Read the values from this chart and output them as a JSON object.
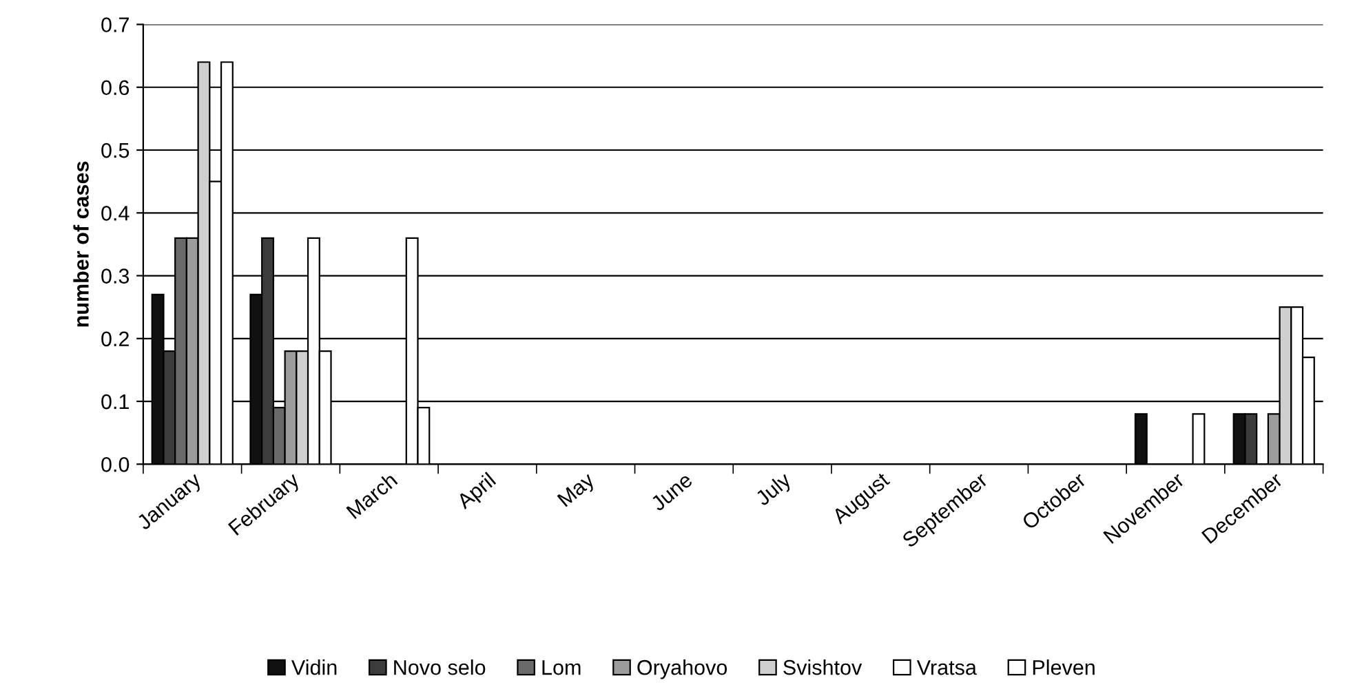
{
  "chart_data": {
    "type": "bar",
    "ylabel": "number of cases",
    "categories": [
      "January",
      "February",
      "March",
      "April",
      "May",
      "June",
      "July",
      "August",
      "September",
      "October",
      "November",
      "December"
    ],
    "series": [
      {
        "name": "Vidin",
        "color": "#111111",
        "values": [
          0.27,
          0.27,
          0,
          0,
          0,
          0,
          0,
          0,
          0,
          0,
          0.08,
          0.08
        ]
      },
      {
        "name": "Novo selo",
        "color": "#3c3c3c",
        "values": [
          0.18,
          0.36,
          0,
          0,
          0,
          0,
          0,
          0,
          0,
          0,
          0,
          0.08
        ]
      },
      {
        "name": "Lom",
        "color": "#6a6a6a",
        "values": [
          0.36,
          0.09,
          0,
          0,
          0,
          0,
          0,
          0,
          0,
          0,
          0,
          0
        ]
      },
      {
        "name": "Oryahovo",
        "color": "#9c9c9c",
        "values": [
          0.36,
          0.18,
          0,
          0,
          0,
          0,
          0,
          0,
          0,
          0,
          0,
          0.08
        ]
      },
      {
        "name": "Svishtov",
        "color": "#cfcfcf",
        "values": [
          0.64,
          0.18,
          0,
          0,
          0,
          0,
          0,
          0,
          0,
          0,
          0,
          0.25
        ]
      },
      {
        "name": "Vratsa",
        "color": "#ffffff",
        "values": [
          0.45,
          0.36,
          0.36,
          0,
          0,
          0,
          0,
          0,
          0,
          0,
          0.08,
          0.25
        ]
      },
      {
        "name": "Pleven",
        "color": "#ffffff",
        "values": [
          0.64,
          0.18,
          0.09,
          0,
          0,
          0,
          0,
          0,
          0,
          0,
          0,
          0.17
        ]
      }
    ],
    "ylim": [
      0,
      0.7
    ],
    "yticks": [
      {
        "value": 0,
        "label": "0.0"
      },
      0.1,
      0.2,
      0.3,
      0.4,
      0.5,
      0.6,
      0.7
    ],
    "grid": "y",
    "legend": "bottom"
  }
}
